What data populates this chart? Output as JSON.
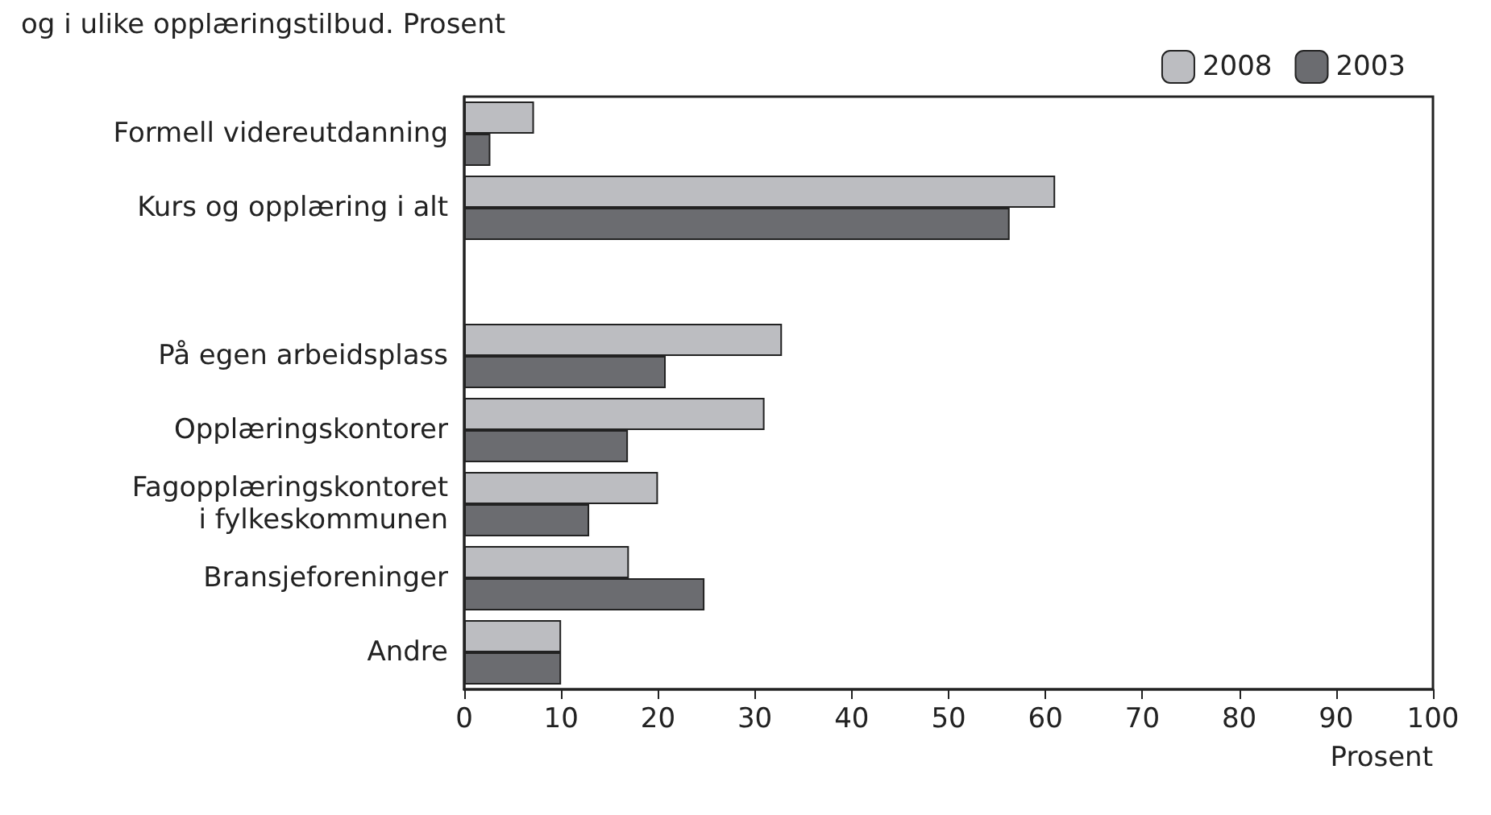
{
  "chart_data": {
    "type": "bar",
    "orientation": "horizontal",
    "title": "og i ulike opplæringstilbud. Prosent",
    "xlabel": "Prosent",
    "categories": [
      "Formell videreutdanning",
      "Kurs og opplæring i alt",
      null,
      "På egen arbeidsplass",
      "Opplæringskontorer",
      "Fagopplæringskontoret\ni fylkeskommunen",
      "Bransjeforeninger",
      "Andre"
    ],
    "series": [
      {
        "name": "2008",
        "color": "#bcbdc1",
        "values": [
          7.2,
          61,
          null,
          32.8,
          31,
          20,
          17,
          10
        ]
      },
      {
        "name": "2003",
        "color": "#6b6c70",
        "values": [
          2.7,
          56.3,
          null,
          20.8,
          16.9,
          12.9,
          24.8,
          10
        ]
      }
    ],
    "xlim": [
      0,
      100
    ],
    "xticks": [
      0,
      10,
      20,
      30,
      40,
      50,
      60,
      70,
      80,
      90,
      100
    ],
    "grid": false,
    "legend": "top right"
  }
}
